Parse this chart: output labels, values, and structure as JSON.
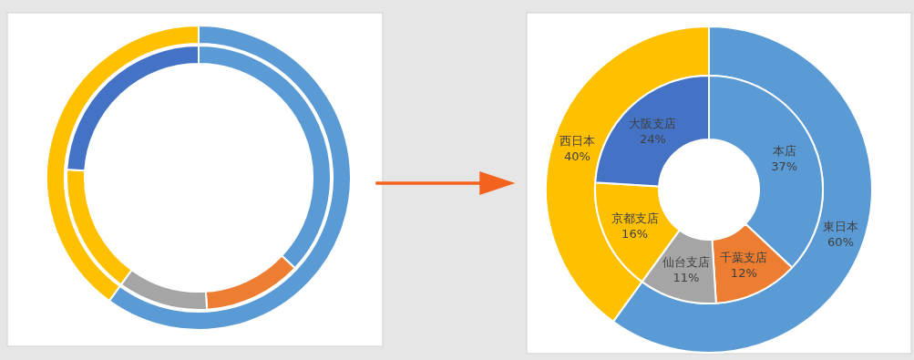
{
  "chart_data": [
    {
      "type": "donut",
      "categories": [
        null,
        null
      ],
      "values": [
        60,
        40
      ],
      "colors": [
        "#5b9bd5",
        "#ffc000"
      ]
    },
    {
      "type": "donut",
      "categories": [
        null,
        null,
        null,
        null,
        null
      ],
      "values": [
        37,
        12,
        11,
        16,
        24
      ],
      "colors": [
        "#5b9bd5",
        "#ed7d31",
        "#a5a5a5",
        "#ffc000",
        "#4472c4"
      ]
    },
    {
      "type": "donut",
      "data_labels": true,
      "categories": [
        "東日本",
        "西日本"
      ],
      "values": [
        60,
        40
      ],
      "value_labels": [
        "60%",
        "40%"
      ],
      "colors": [
        "#5b9bd5",
        "#ffc000"
      ]
    },
    {
      "type": "donut",
      "data_labels": true,
      "categories": [
        "本店",
        "千葉支店",
        "仙台支店",
        "京都支店",
        "大阪支店"
      ],
      "values": [
        37,
        12,
        11,
        16,
        24
      ],
      "value_labels": [
        "37%",
        "12%",
        "11%",
        "16%",
        "24%"
      ],
      "colors": [
        "#5b9bd5",
        "#ed7d31",
        "#a5a5a5",
        "#ffc000",
        "#4472c4"
      ]
    }
  ]
}
